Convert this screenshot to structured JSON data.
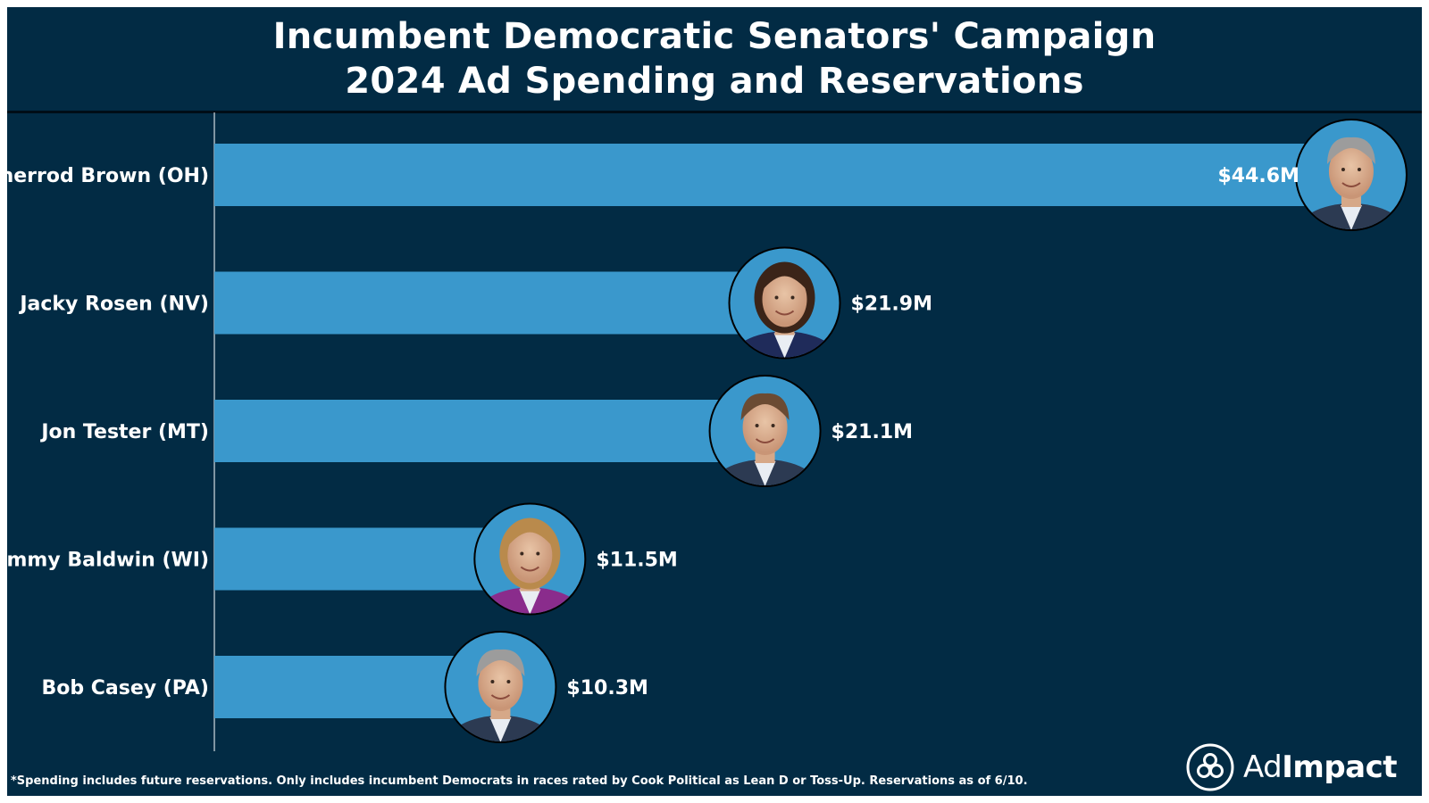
{
  "chart_data": {
    "type": "bar",
    "orientation": "horizontal",
    "title": "Incumbent Democratic Senators' Campaign",
    "subtitle": "2024 Ad Spending and Reservations",
    "categories": [
      "Sherrod Brown (OH)",
      "Jacky Rosen (NV)",
      "Jon Tester (MT)",
      "Tammy Baldwin (WI)",
      "Bob Casey (PA)"
    ],
    "values": [
      44.6,
      21.9,
      21.1,
      11.5,
      10.3
    ],
    "value_labels": [
      "$44.6M",
      "$21.9M",
      "$21.1M",
      "$11.5M",
      "$10.3M"
    ],
    "xlim": [
      0,
      50
    ],
    "xlabel": "",
    "ylabel": "",
    "grid": false,
    "legend": "none",
    "bar_color": "#3a98cc",
    "background_color": "#022b44"
  },
  "footnote": "*Spending includes future reservations. Only includes incumbent Democrats in races rated by Cook Political as Lean D or Toss-Up. Reservations as of 6/10.",
  "brand": {
    "light": "Ad",
    "bold": "Impact",
    "icon": "adimpact-logo-icon"
  }
}
